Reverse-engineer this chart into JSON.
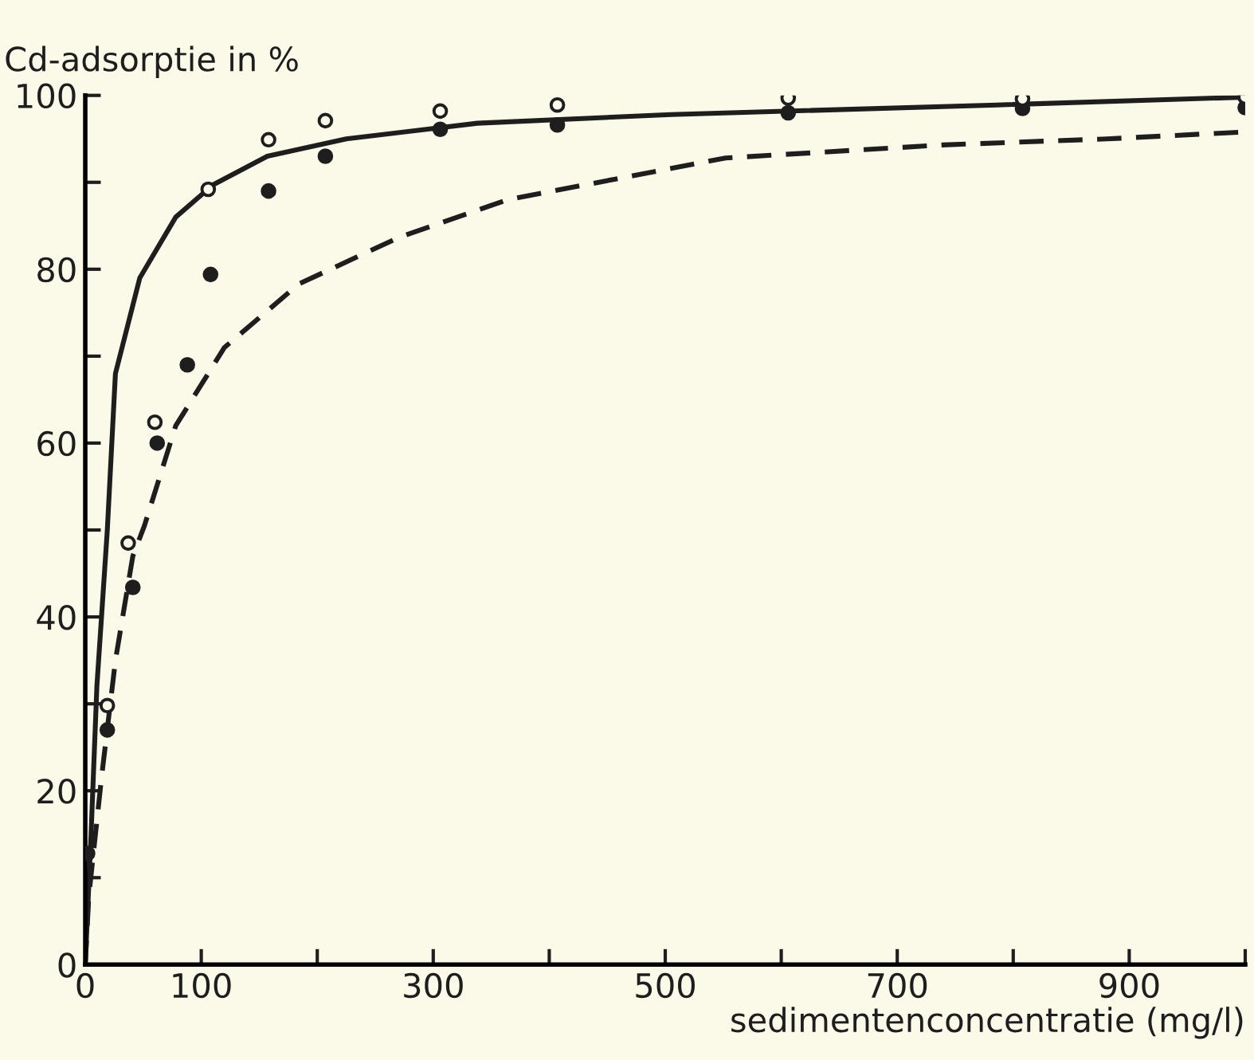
{
  "chart_data": {
    "type": "line",
    "ylabel": "Cd-adsorptie in %",
    "xlabel": "sedimentenconcentratie (mg/l)",
    "xlim": [
      0,
      1000
    ],
    "ylim": [
      0,
      100
    ],
    "xticks": [
      0,
      100,
      {
        "value": 200,
        "label": null
      },
      300,
      {
        "value": 400,
        "label": null
      },
      500,
      {
        "value": 600,
        "label": null
      },
      700,
      {
        "value": 800,
        "label": null
      },
      900,
      {
        "value": 1000,
        "label": null
      }
    ],
    "yticks": [
      0,
      {
        "value": 10,
        "label": null
      },
      20,
      {
        "value": 30,
        "label": null
      },
      40,
      {
        "value": 50,
        "label": null
      },
      60,
      {
        "value": 70,
        "label": null
      },
      80,
      {
        "value": 90,
        "label": null
      },
      100
    ],
    "grid": false,
    "legend": false,
    "series": [
      {
        "color": "#1e1e1e",
        "line_style": "solid",
        "marker": "none",
        "x": [
          0,
          5,
          10,
          19,
          26,
          47,
          78,
          110,
          157,
          225,
          338,
          505,
          786,
          1000
        ],
        "values": [
          0,
          15,
          32,
          50,
          68,
          79,
          86,
          89.7,
          93,
          95,
          96.8,
          97.8,
          98.9,
          99.8
        ]
      },
      {
        "color": "#1e1e1e",
        "line_style": "dashed",
        "marker": "none",
        "x": [
          0,
          3,
          14,
          26,
          41,
          51,
          78,
          120,
          184,
          271,
          364,
          552,
          739,
          881,
          1000
        ],
        "values": [
          0,
          7.8,
          21.5,
          35,
          47,
          50.5,
          62,
          71,
          78.3,
          83.7,
          88,
          92.8,
          94.3,
          95,
          95.8
        ]
      },
      {
        "type": "scatter",
        "color": "#1e1e1e",
        "marker": "circle",
        "x": [
          19,
          37,
          60,
          106,
          158,
          207,
          306,
          407,
          606,
          808,
          1000
        ],
        "values": [
          29.8,
          48.5,
          62.4,
          89.2,
          94.9,
          97.1,
          98.2,
          98.9,
          99.7,
          99.6,
          99.8
        ]
      },
      {
        "type": "scatter",
        "color": "#1e1e1e",
        "marker": "circle",
        "x": [
          2,
          19,
          41,
          62,
          88,
          108,
          158,
          207,
          306,
          407,
          606,
          808,
          1000
        ],
        "values": [
          12.8,
          27,
          43.4,
          60,
          69,
          79.4,
          89,
          93,
          96.1,
          96.6,
          98,
          98.5,
          98.6
        ]
      }
    ]
  }
}
